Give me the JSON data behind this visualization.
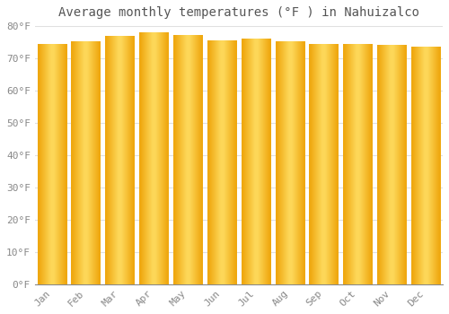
{
  "title": "Average monthly temperatures (°F ) in Nahuizalco",
  "months": [
    "Jan",
    "Feb",
    "Mar",
    "Apr",
    "May",
    "Jun",
    "Jul",
    "Aug",
    "Sep",
    "Oct",
    "Nov",
    "Dec"
  ],
  "values": [
    74.3,
    75.2,
    77.0,
    78.1,
    77.2,
    75.4,
    76.1,
    75.3,
    74.5,
    74.5,
    74.0,
    73.4
  ],
  "bar_color_center": "#FFD966",
  "bar_color_edge": "#F0A800",
  "background_color": "#ffffff",
  "ylim": [
    0,
    80
  ],
  "yticks": [
    0,
    10,
    20,
    30,
    40,
    50,
    60,
    70,
    80
  ],
  "ytick_labels": [
    "0°F",
    "10°F",
    "20°F",
    "30°F",
    "40°F",
    "50°F",
    "60°F",
    "70°F",
    "80°F"
  ],
  "title_fontsize": 10,
  "tick_fontsize": 8,
  "grid_color": "#e0e0e0",
  "bar_width": 0.85
}
